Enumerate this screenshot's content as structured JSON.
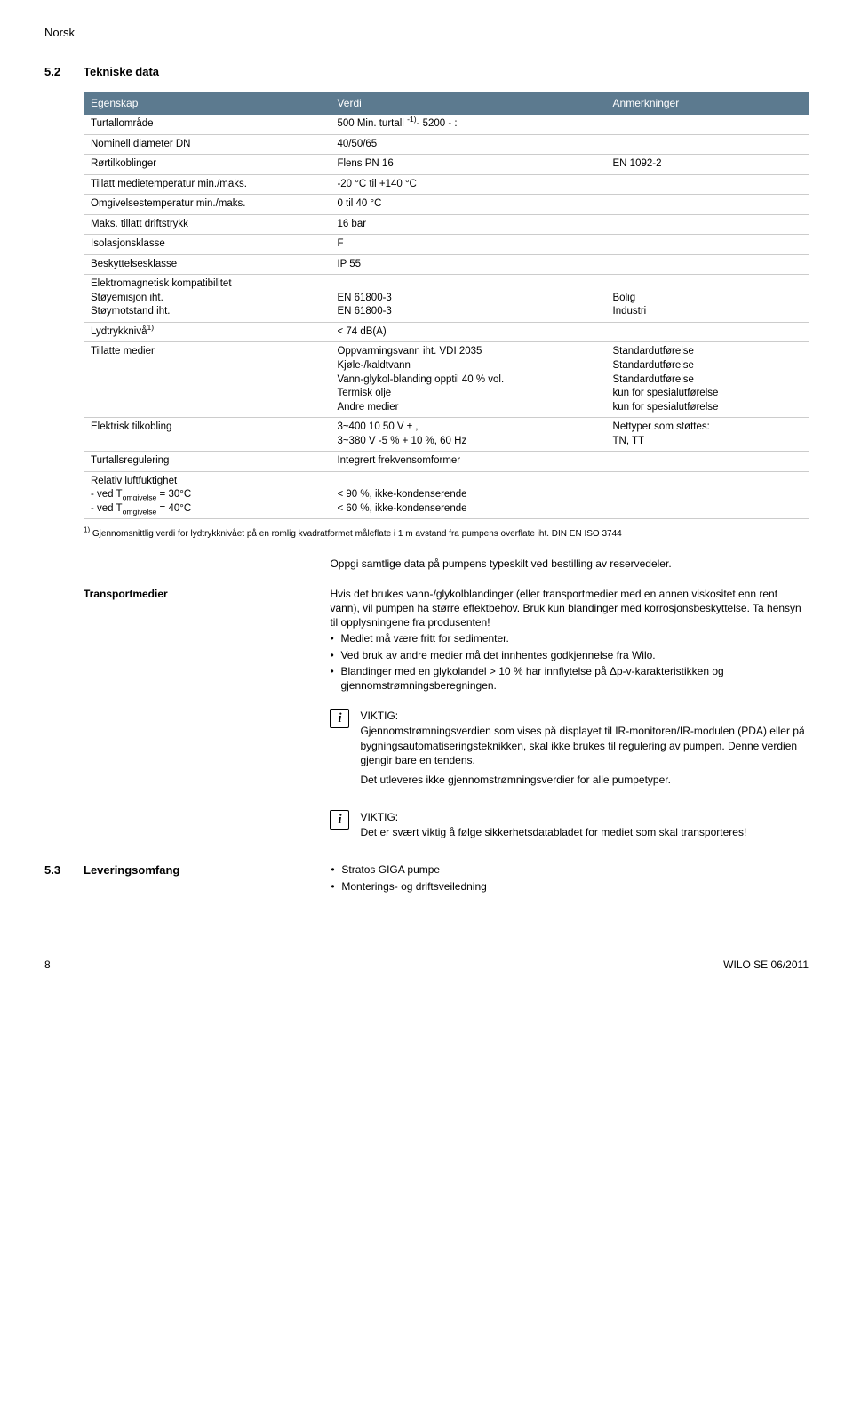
{
  "lang": "Norsk",
  "section": {
    "num": "5.2",
    "title": "Tekniske data"
  },
  "table": {
    "headers": [
      "Egenskap",
      "Verdi",
      "Anmerkninger"
    ],
    "col_widths": [
      "34%",
      "38%",
      "28%"
    ],
    "header_bg": "#5c7a8f",
    "header_color": "#ffffff",
    "border_color": "#cccccc",
    "rows": [
      {
        "c1": "Turtallområde",
        "c2_html": "500 Min. turtall <sup>-1)</sup>- 5200 - :",
        "c3": ""
      },
      {
        "c1": "Nominell diameter DN",
        "c2": "40/50/65",
        "c3": ""
      },
      {
        "c1": "Rørtilkoblinger",
        "c2": "Flens PN 16",
        "c3": "EN 1092-2"
      },
      {
        "c1": "Tillatt medietemperatur min./maks.",
        "c2": "-20 °C til +140 °C",
        "c3": ""
      },
      {
        "c1": "Omgivelsestemperatur min./maks.",
        "c2": "0 til 40 °C",
        "c3": ""
      },
      {
        "c1": "Maks. tillatt driftstrykk",
        "c2": "16 bar",
        "c3": ""
      },
      {
        "c1": "Isolasjonsklasse",
        "c2": "F",
        "c3": ""
      },
      {
        "c1": "Beskyttelsesklasse",
        "c2": "IP 55",
        "c3": ""
      },
      {
        "c1_html": "Elektromagnetisk kompatibilitet<br>Støyemisjon iht.<br>Støymotstand iht.",
        "c2_html": "<br>EN 61800-3<br>EN 61800-3",
        "c3_html": "<br>Bolig<br>Industri"
      },
      {
        "c1_html": "Lydtrykknivå<sup>1)</sup>",
        "c2": "< 74 dB(A)",
        "c3": ""
      },
      {
        "c1": "Tillatte medier",
        "c2_html": "Oppvarmingsvann iht. VDI 2035<br>Kjøle-/kaldtvann<br>Vann-glykol-blanding opptil 40 % vol.<br>Termisk olje<br>Andre medier",
        "c3_html": "Standardutførelse<br>Standardutførelse<br>Standardutførelse<br>kun for spesialutførelse<br>kun for spesialutførelse"
      },
      {
        "c1": "Elektrisk tilkobling",
        "c2_html": "3~400 10 50  V ± ,<br>3~380 V -5 % + 10 %, 60 Hz",
        "c3_html": "Nettyper som støttes:<br>TN, TT"
      },
      {
        "c1": "Turtallsregulering",
        "c2": "Integrert frekvensomformer",
        "c3": ""
      },
      {
        "c1_html": "Relativ luftfuktighet<br>- ved T<sub>omgivelse</sub> = 30°C<br>- ved T<sub>omgivelse</sub> = 40°C",
        "c2_html": "<br>< 90 %, ikke-kondenserende<br>< 60 %, ikke-kondenserende",
        "c3": ""
      }
    ]
  },
  "footnote": "Gjennomsnittlig verdi for lydtrykknivået på en romlig kvadratformet måleflate i 1 m avstand fra pumpens overflate iht. DIN EN ISO 3744",
  "footnote_marker": "1)",
  "intro_line": "Oppgi samtlige data på pumpens typeskilt ved bestilling av reservedeler.",
  "transport": {
    "label": "Transportmedier",
    "para": "Hvis det brukes vann-/glykolblandinger (eller transportmedier med en annen viskositet enn rent vann), vil pumpen ha større effektbehov. Bruk kun blandinger med korrosjonsbeskyttelse. Ta hensyn til opplysningene fra produsenten!",
    "bullets": [
      "Mediet må være fritt for sedimenter.",
      "Ved bruk av andre medier må det innhentes godkjennelse fra Wilo.",
      "Blandinger med en glykolandel > 10 % har innflytelse på Δp-v-karakteristikken og gjennomstrømningsberegningen."
    ]
  },
  "info1": {
    "heading": "VIKTIG:",
    "p1": "Gjennomstrømningsverdien som vises på displayet til IR-monitoren/IR-modulen (PDA) eller på bygningsautomatiseringsteknikken, skal ikke brukes til regulering av pumpen. Denne verdien gjengir bare en tendens.",
    "p2": "Det utleveres ikke gjennomstrømningsverdier for alle pumpetyper."
  },
  "info2": {
    "heading": "VIKTIG:",
    "p1": "Det er svært viktig å følge sikkerhetsdatabladet for mediet som skal transporteres!"
  },
  "delivery": {
    "num": "5.3",
    "title": "Leveringsomfang",
    "items": [
      "Stratos GIGA pumpe",
      "Monterings- og driftsveiledning"
    ]
  },
  "footer": {
    "page": "8",
    "right": "WILO SE 06/2011"
  }
}
